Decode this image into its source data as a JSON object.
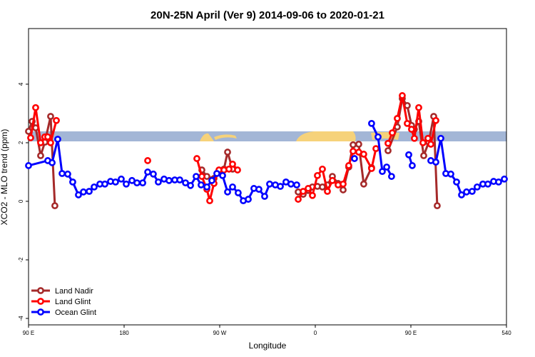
{
  "chart_data": {
    "type": "line",
    "title": "20N-25N April (Ver 9)   2014-09-06 to 2020-01-21",
    "x_label": "Longitude",
    "y_label": "XCO2 - MLO trend (ppm)",
    "xlim": [
      90,
      540
    ],
    "xticks": [
      {
        "value": 90,
        "label": "90 E"
      },
      180,
      {
        "value": 270,
        "label": "90 W"
      },
      {
        "value": 360,
        "label": "0"
      },
      {
        "value": 450,
        "label": "90 E"
      },
      540
    ],
    "ylim": [
      -4.22,
      5.9
    ],
    "yticks": [
      -4,
      -2,
      0,
      2,
      4
    ],
    "legend": "bottomleft",
    "series": [
      {
        "name": "Land Nadir",
        "color": "#a52a2a",
        "x": [
          90.0,
          93.4,
          96.7,
          101.4,
          105.4,
          110.8,
          114.8,
          null,
          253.2,
          257.9,
          264.6,
          269.3,
          274.0,
          277.4,
          282.1,
          null,
          343.9,
          348.6,
          353.3,
          357.3,
          362.0,
          366.7,
          371.4,
          376.1,
          381.5,
          386.2,
          391.5,
          395.6,
          400.9,
          405.6,
          413.0,
          null,
          428.5,
          437.2,
          441.9,
          446.6,
          450.6,
          453.3,
          457.4,
          462.1,
          466.8,
          471.5,
          474.8
        ],
        "values": [
          2.39,
          2.73,
          2.51,
          1.56,
          2.02,
          2.9,
          -0.15,
          null,
          1.07,
          0.85,
          0.78,
          1.0,
          1.1,
          1.68,
          1.1,
          null,
          0.32,
          0.24,
          0.37,
          0.49,
          0.51,
          0.49,
          0.56,
          0.85,
          0.61,
          0.39,
          1.17,
          1.93,
          1.95,
          0.59,
          1.15,
          null,
          1.73,
          2.54,
          3.51,
          3.27,
          2.59,
          2.46,
          2.73,
          1.56,
          2.02,
          2.9,
          -0.15
        ]
      },
      {
        "name": "Land Glint",
        "color": "#ff0000",
        "x": [
          92.0,
          96.7,
          101.4,
          105.4,
          108.1,
          110.8,
          116.2,
          null,
          202.2,
          null,
          248.5,
          253.2,
          257.9,
          260.6,
          264.6,
          269.3,
          274.0,
          278.7,
          282.1,
          286.8,
          null,
          343.9,
          348.6,
          353.3,
          357.3,
          362.0,
          366.7,
          371.4,
          376.1,
          381.5,
          386.2,
          391.5,
          395.6,
          400.9,
          405.6,
          413.0,
          417.1,
          null,
          428.5,
          432.5,
          437.2,
          441.9,
          446.6,
          450.6,
          453.3,
          457.4,
          461.4,
          466.1,
          468.8,
          473.5
        ],
        "values": [
          2.17,
          3.2,
          2.0,
          2.2,
          2.2,
          2.0,
          2.76,
          null,
          1.39,
          null,
          1.46,
          0.85,
          0.41,
          0.02,
          0.61,
          1.07,
          1.07,
          1.1,
          1.27,
          1.07,
          null,
          0.07,
          0.34,
          0.44,
          0.2,
          0.88,
          1.1,
          0.34,
          0.71,
          0.56,
          0.59,
          1.22,
          1.71,
          1.68,
          1.61,
          1.12,
          1.8,
          null,
          1.98,
          2.34,
          2.83,
          3.61,
          2.66,
          2.46,
          2.15,
          3.2,
          2.0,
          2.15,
          1.95,
          2.76
        ]
      },
      {
        "name": "Ocean Glint",
        "color": "#0000ff",
        "x": [
          90.0,
          108.1,
          112.2,
          117.5,
          121.6,
          126.9,
          131.6,
          137.0,
          141.7,
          147.1,
          151.8,
          157.2,
          161.9,
          167.2,
          171.9,
          177.3,
          182.0,
          187.4,
          192.1,
          197.5,
          202.2,
          207.5,
          212.2,
          217.6,
          222.3,
          227.7,
          232.4,
          237.8,
          242.5,
          247.8,
          252.5,
          257.9,
          262.6,
          267.3,
          272.7,
          277.4,
          282.1,
          287.4,
          292.2,
          296.9,
          302.2,
          306.9,
          312.3,
          317.0,
          322.4,
          327.1,
          332.4,
          337.1,
          342.5,
          null,
          396.9,
          null,
          413.0,
          419.1,
          423.1,
          427.2,
          431.8,
          null,
          448.0,
          451.3,
          null,
          468.8,
          473.5,
          478.2,
          482.9,
          487.6,
          493.0,
          497.7,
          502.4,
          507.7,
          512.4,
          517.8,
          522.5,
          527.9,
          532.6,
          538.0
        ],
        "values": [
          1.22,
          1.39,
          1.32,
          2.12,
          0.95,
          0.93,
          0.66,
          0.22,
          0.32,
          0.34,
          0.49,
          0.59,
          0.59,
          0.68,
          0.66,
          0.76,
          0.59,
          0.71,
          0.63,
          0.63,
          1.0,
          0.93,
          0.66,
          0.76,
          0.71,
          0.73,
          0.73,
          0.63,
          0.54,
          0.85,
          0.56,
          0.49,
          0.71,
          0.95,
          0.88,
          0.32,
          0.49,
          0.29,
          0.02,
          0.07,
          0.44,
          0.41,
          0.17,
          0.59,
          0.56,
          0.51,
          0.66,
          0.59,
          0.56,
          null,
          1.46,
          null,
          2.66,
          2.2,
          1.02,
          1.17,
          0.85,
          null,
          1.59,
          1.22,
          null,
          1.39,
          1.34,
          2.15,
          0.95,
          0.93,
          0.66,
          0.22,
          0.32,
          0.34,
          0.49,
          0.59,
          0.59,
          0.68,
          0.66,
          0.76
        ]
      }
    ]
  }
}
